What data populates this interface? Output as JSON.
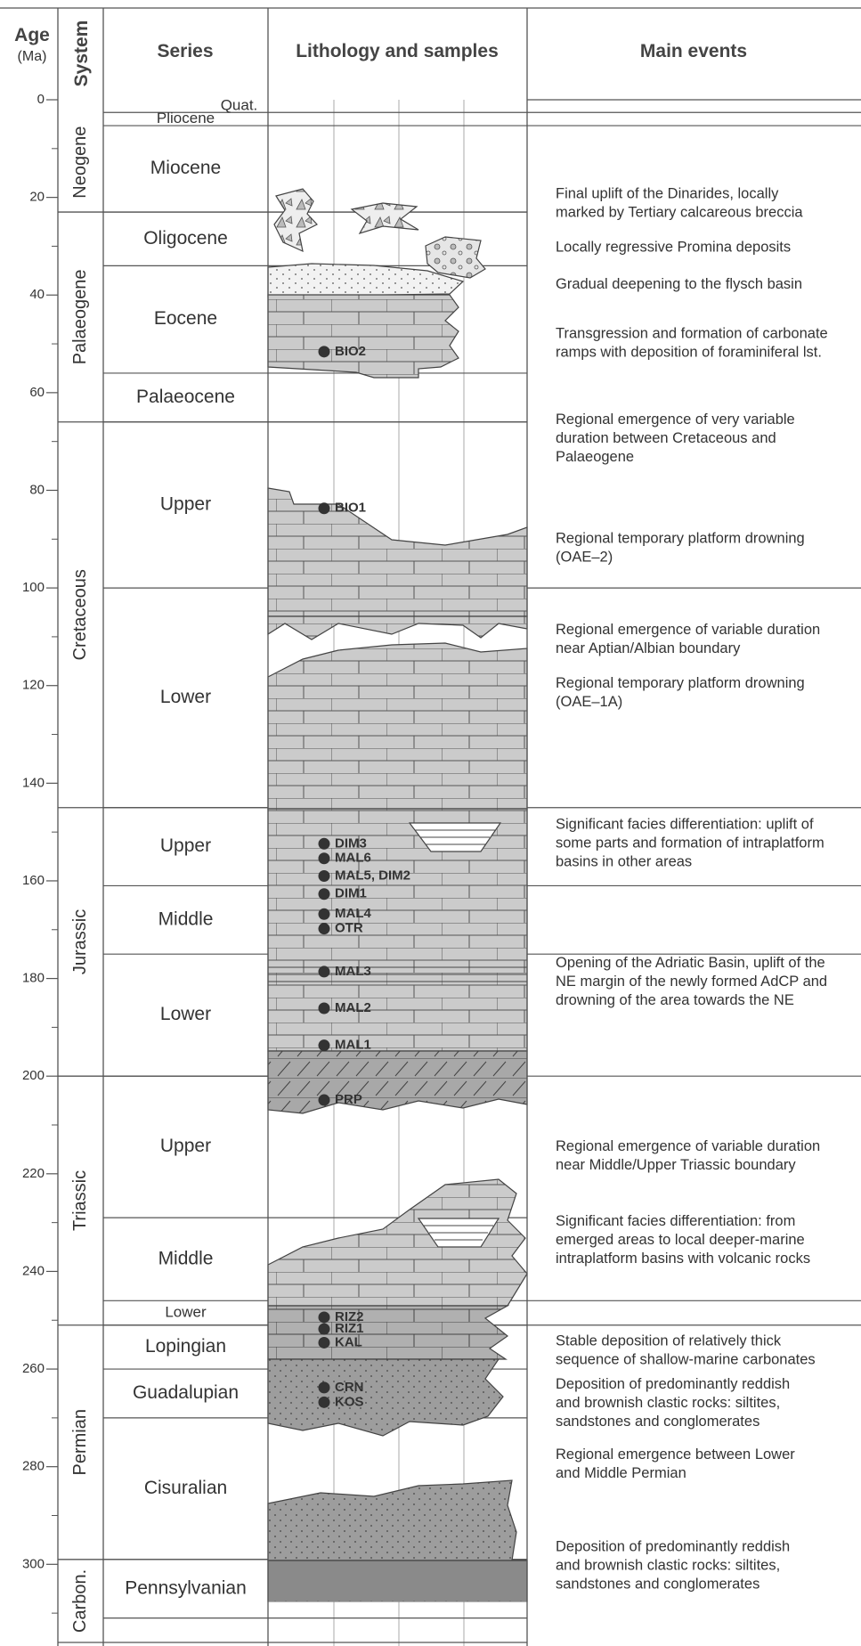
{
  "header": {
    "age": "Age",
    "age_unit": "(Ma)",
    "system": "System",
    "series": "Series",
    "lithology": "Lithology and samples",
    "events": "Main events"
  },
  "age_axis": {
    "range": [
      0,
      316
    ],
    "ticks": [
      0,
      20,
      40,
      60,
      80,
      100,
      120,
      140,
      160,
      180,
      200,
      220,
      240,
      260,
      280,
      300
    ],
    "minor_ticks": [
      10,
      30,
      50,
      70,
      90,
      110,
      130,
      150,
      170,
      190,
      210,
      230,
      250,
      270,
      290,
      310
    ]
  },
  "systems": [
    {
      "label": "Neogene",
      "top": 2.6,
      "base": 23
    },
    {
      "label": "Palaeogene",
      "top": 23,
      "base": 66
    },
    {
      "label": "Cretaceous",
      "top": 66,
      "base": 145
    },
    {
      "label": "Jurassic",
      "top": 145,
      "base": 200
    },
    {
      "label": "Triassic",
      "top": 200,
      "base": 251
    },
    {
      "label": "Permian",
      "top": 251,
      "base": 299
    },
    {
      "label": "Carbon.",
      "top": 299,
      "base": 316
    }
  ],
  "series": [
    {
      "label": "Quat.",
      "top": 0,
      "base": 2.6
    },
    {
      "label": "Pliocene",
      "top": 2.6,
      "base": 5.3
    },
    {
      "label": "Miocene",
      "top": 5.3,
      "base": 23
    },
    {
      "label": "Oligocene",
      "top": 23,
      "base": 34
    },
    {
      "label": "Eocene",
      "top": 34,
      "base": 56
    },
    {
      "label": "Palaeocene",
      "top": 56,
      "base": 66
    },
    {
      "label": "Upper",
      "top": 66,
      "base": 100
    },
    {
      "label": "Lower",
      "top": 100,
      "base": 145
    },
    {
      "label": "Upper",
      "top": 145,
      "base": 161
    },
    {
      "label": "Middle",
      "top": 161,
      "base": 175
    },
    {
      "label": "Lower",
      "top": 175,
      "base": 200
    },
    {
      "label": "Upper",
      "top": 200,
      "base": 229
    },
    {
      "label": "Middle",
      "top": 229,
      "base": 246
    },
    {
      "label": "Lower",
      "top": 246,
      "base": 251
    },
    {
      "label": "Lopingian",
      "top": 251,
      "base": 260
    },
    {
      "label": "Guadalupian",
      "top": 260,
      "base": 270
    },
    {
      "label": "Cisuralian",
      "top": 270,
      "base": 299
    },
    {
      "label": "Pennsylvanian",
      "top": 299,
      "base": 311
    }
  ],
  "samples": [
    {
      "label": "BIO2",
      "age": 51.6
    },
    {
      "label": "BIO1",
      "age": 83.7
    },
    {
      "label": "DIM3",
      "age": 152.4
    },
    {
      "label": "MAL6",
      "age": 155.4
    },
    {
      "label": "MAL5, DIM2",
      "age": 159
    },
    {
      "label": "DIM1",
      "age": 162.7
    },
    {
      "label": "MAL4",
      "age": 166.8
    },
    {
      "label": "OTR",
      "age": 169.8
    },
    {
      "label": "MAL3",
      "age": 178.6
    },
    {
      "label": "MAL2",
      "age": 186.1
    },
    {
      "label": "MAL1",
      "age": 193.7
    },
    {
      "label": "PRP",
      "age": 204.9
    },
    {
      "label": "RIZ2",
      "age": 249.4
    },
    {
      "label": "RIZ1",
      "age": 251.8
    },
    {
      "label": "KAL",
      "age": 254.6
    },
    {
      "label": "CRN",
      "age": 263.8
    },
    {
      "label": "KOS",
      "age": 266.8
    }
  ],
  "events": [
    {
      "age": 19.4,
      "lines": [
        "Final uplift of the Dinarides, locally",
        "marked by Tertiary calcareous breccia"
      ]
    },
    {
      "age": 30.3,
      "lines": [
        "Locally regressive Promina deposits"
      ]
    },
    {
      "age": 37.9,
      "lines": [
        "Gradual deepening to the flysch basin"
      ]
    },
    {
      "age": 48,
      "lines": [
        "Transgression and formation of carbonate",
        "ramps with deposition of foraminiferal lst."
      ]
    },
    {
      "age": 65.6,
      "lines": [
        "Regional emergence of very variable",
        "duration between Cretaceous and",
        "Palaeogene"
      ]
    },
    {
      "age": 90,
      "lines": [
        "Regional temporary platform drowning",
        "(OAE–2)"
      ]
    },
    {
      "age": 108.7,
      "lines": [
        "Regional emergence of variable duration",
        "near Aptian/Albian boundary"
      ]
    },
    {
      "age": 119.6,
      "lines": [
        "Regional temporary platform drowning",
        "(OAE–1A)"
      ]
    },
    {
      "age": 148.5,
      "lines": [
        "Significant facies differentiation: uplift of",
        "some parts and formation of intraplatform",
        "basins in other areas"
      ]
    },
    {
      "age": 176.9,
      "lines": [
        "Opening of the Adriatic Basin, uplift of the",
        "NE margin of the newly formed AdCP and",
        "drowning of the area towards the NE"
      ]
    },
    {
      "age": 214.5,
      "lines": [
        "Regional emergence of variable duration",
        "near Middle/Upper Triassic boundary"
      ]
    },
    {
      "age": 229.8,
      "lines": [
        "Significant facies differentiation: from",
        "emerged areas to local deeper-marine",
        "intraplatform basins with volcanic rocks"
      ]
    },
    {
      "age": 254.4,
      "lines": [
        "Stable deposition of relatively thick",
        "sequence of shallow-marine carbonates"
      ]
    },
    {
      "age": 263.2,
      "lines": [
        "Deposition of predominantly reddish",
        "and brownish clastic rocks: siltites,",
        "sandstones and conglomerates"
      ]
    },
    {
      "age": 277.6,
      "lines": [
        "Regional emergence between Lower",
        "and Middle Permian"
      ]
    },
    {
      "age": 296.5,
      "lines": [
        "Deposition of predominantly reddish",
        "and brownish clastic rocks: siltites,",
        "sandstones and conglomerates"
      ]
    }
  ],
  "event_dividers": [
    0,
    2.6,
    5.3,
    100,
    145,
    161,
    175,
    200,
    246,
    251
  ]
}
